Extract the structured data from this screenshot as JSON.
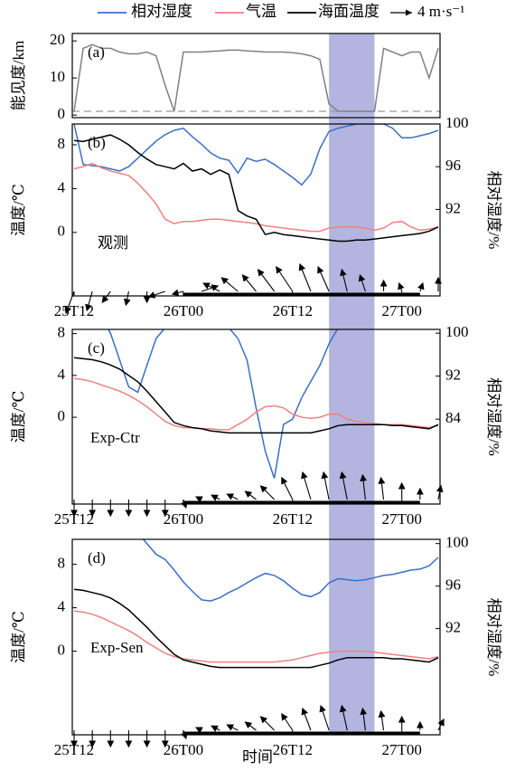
{
  "legend": {
    "items": [
      {
        "name": "相对湿度",
        "color": "#3a6fc4"
      },
      {
        "name": "气温",
        "color": "#f08080"
      },
      {
        "name": "海面温度",
        "color": "#000000"
      }
    ],
    "wind": {
      "value": 4,
      "label": "4 m·s⁻¹"
    }
  },
  "shade": {
    "range": [
      "26T16",
      "26T21"
    ],
    "color": "#9b9bd6"
  },
  "x_axis_label": "时间",
  "chart_data": [
    {
      "type": "line",
      "panel_label": "(a)",
      "ylabel": "能见度/km",
      "ylim": [
        -0.7,
        22
      ],
      "yticks": [
        0,
        10,
        20
      ],
      "threshold": 1,
      "x": [
        "25T12",
        "25T13",
        "25T14",
        "25T15",
        "25T16",
        "25T17",
        "25T18",
        "25T19",
        "25T20",
        "25T21",
        "25T22",
        "25T23",
        "26T00",
        "26T01",
        "26T02",
        "26T03",
        "26T04",
        "26T05",
        "26T06",
        "26T07",
        "26T08",
        "26T09",
        "26T10",
        "26T11",
        "26T12",
        "26T13",
        "26T14",
        "26T15",
        "26T16",
        "26T17",
        "26T18",
        "26T19",
        "26T20",
        "26T21",
        "26T22",
        "26T23",
        "27T00",
        "27T01",
        "27T02",
        "27T03",
        "27T04"
      ],
      "series": [
        {
          "color": "#808080",
          "values": [
            1,
            18,
            19,
            18,
            18,
            17,
            16.5,
            16.5,
            17,
            16,
            8,
            1,
            17,
            17,
            17,
            17.2,
            17.3,
            17.5,
            17.5,
            17.3,
            17.2,
            17,
            17,
            17,
            16.8,
            16.5,
            16,
            15,
            3,
            1,
            1,
            1,
            1,
            1,
            18,
            17,
            16,
            17,
            17,
            10,
            18
          ]
        }
      ]
    },
    {
      "type": "line",
      "panel_label": "(b)",
      "annotation": "观测",
      "ylabel": "温度/℃",
      "y2label": "相对湿度/%",
      "ylim": [
        -5.8,
        9.9
      ],
      "yticks": [
        0,
        4,
        8
      ],
      "y2lim": [
        83.9,
        100
      ],
      "y2ticks": [
        92,
        96,
        100
      ],
      "xticks": [
        "25T12",
        "26T00",
        "26T12",
        "27T00"
      ],
      "bar_period": [
        "26T00",
        "27T02"
      ],
      "x": [
        "25T12",
        "25T13",
        "25T14",
        "25T15",
        "25T16",
        "25T17",
        "25T18",
        "25T19",
        "25T20",
        "25T21",
        "25T22",
        "25T23",
        "26T00",
        "26T01",
        "26T02",
        "26T03",
        "26T04",
        "26T05",
        "26T06",
        "26T07",
        "26T08",
        "26T09",
        "26T10",
        "26T11",
        "26T12",
        "26T13",
        "26T14",
        "26T15",
        "26T16",
        "26T17",
        "26T18",
        "26T19",
        "26T20",
        "26T21",
        "26T22",
        "26T23",
        "27T00",
        "27T01",
        "27T02",
        "27T03",
        "27T04"
      ],
      "series": [
        {
          "color": "#3a6fc4",
          "axis": "y2",
          "values": [
            100,
            96.2,
            96.1,
            96,
            95.8,
            95.6,
            96,
            96.8,
            97.6,
            98.4,
            99,
            99.4,
            99.6,
            98.8,
            98.1,
            97.3,
            96.8,
            96.6,
            95.4,
            96.8,
            96.5,
            96.7,
            96.2,
            95.6,
            95,
            94.3,
            95.3,
            97.7,
            99.3,
            99.6,
            99.8,
            100,
            100,
            100,
            100,
            99.6,
            98.7,
            98.7,
            98.9,
            99.1,
            99.4
          ]
        },
        {
          "color": "#f08080",
          "values": [
            5.8,
            6,
            6.3,
            5.9,
            5.6,
            5.4,
            5.2,
            4.5,
            3.6,
            2.6,
            1.2,
            0.8,
            1,
            1,
            1.1,
            1.2,
            1.2,
            1.1,
            1,
            0.9,
            0.8,
            0.6,
            0.5,
            0.4,
            0.3,
            0.2,
            0.1,
            0.1,
            0.4,
            0.5,
            0.5,
            0.5,
            0.4,
            0.2,
            0.4,
            0.9,
            1,
            0.5,
            0.2,
            0.3,
            0.5
          ]
        },
        {
          "color": "#000000",
          "values": [
            8.4,
            8.3,
            8.5,
            8.7,
            8.9,
            8.5,
            8,
            7.3,
            6.7,
            6.2,
            6,
            5.8,
            6.3,
            5.6,
            5.8,
            5.3,
            5.7,
            5.3,
            2,
            1.5,
            1.2,
            -0.2,
            0,
            -0.2,
            -0.3,
            -0.4,
            -0.5,
            -0.6,
            -0.7,
            -0.8,
            -0.8,
            -0.7,
            -0.7,
            -0.6,
            -0.5,
            -0.4,
            -0.3,
            -0.2,
            -0.1,
            0.1,
            0.5
          ]
        }
      ],
      "wind": {
        "x": [
          "25T12",
          "25T14",
          "25T16",
          "25T18",
          "25T20",
          "25T22",
          "26T00",
          "26T02",
          "26T04",
          "26T06",
          "26T08",
          "26T10",
          "26T12",
          "26T14",
          "26T16",
          "26T18",
          "26T20",
          "26T22",
          "27T00",
          "27T02",
          "27T04"
        ],
        "u": [
          -1.5,
          -1,
          -1.5,
          -0.5,
          0,
          -3,
          -2,
          3,
          -3,
          -3,
          -2.5,
          -3,
          -3,
          -2,
          -2,
          -1,
          -1,
          0,
          -0.5,
          0.5,
          0
        ],
        "v": [
          -4,
          -3.5,
          -2,
          -2.5,
          -2,
          -1,
          -0.5,
          1,
          1.5,
          2.5,
          3,
          4,
          4.5,
          5,
          4.5,
          4,
          3,
          2,
          1.5,
          1.5,
          2.5
        ]
      }
    },
    {
      "type": "line",
      "panel_label": "(c)",
      "annotation": "Exp-Ctr",
      "ylabel": "温度/℃",
      "y2label": "相对湿度/%",
      "ylim": [
        -8.3,
        8.4
      ],
      "yticks": [
        0,
        4,
        8
      ],
      "y2lim": [
        68.2,
        100.7
      ],
      "y2ticks": [
        84,
        92,
        100
      ],
      "xticks": [
        "25T12",
        "26T00",
        "26T12",
        "27T00"
      ],
      "bar_period": [
        "26T00",
        "27T02"
      ],
      "x": [
        "25T12",
        "25T13",
        "25T14",
        "25T15",
        "25T16",
        "25T17",
        "25T18",
        "25T19",
        "25T20",
        "25T21",
        "25T22",
        "25T23",
        "26T00",
        "26T01",
        "26T02",
        "26T03",
        "26T04",
        "26T05",
        "26T06",
        "26T07",
        "26T08",
        "26T09",
        "26T10",
        "26T11",
        "26T12",
        "26T13",
        "26T14",
        "26T15",
        "26T16",
        "26T17",
        "26T18",
        "26T19",
        "26T20",
        "26T21",
        "26T22",
        "26T23",
        "27T00",
        "27T01",
        "27T02",
        "27T03",
        "27T04"
      ],
      "series": [
        {
          "color": "#3a6fc4",
          "axis": "y2",
          "values": [
            104,
            104,
            104,
            103,
            100,
            95,
            90,
            89,
            94,
            99,
            101,
            102,
            102,
            102,
            102,
            102,
            102,
            101,
            99,
            95,
            86,
            78,
            73,
            83,
            84,
            88,
            91,
            94,
            98,
            101,
            103,
            103,
            103,
            103,
            103,
            103,
            103,
            103,
            103,
            103,
            103
          ]
        },
        {
          "color": "#f08080",
          "values": [
            3.7,
            3.6,
            3.4,
            3.1,
            2.8,
            2.5,
            2.1,
            1.6,
            1,
            0.3,
            -0.4,
            -0.8,
            -1,
            -1,
            -1.1,
            -1.1,
            -1.2,
            -1.2,
            -0.7,
            -0.2,
            0.5,
            1,
            1.1,
            0.9,
            0.3,
            0,
            -0.1,
            0,
            0.3,
            0.3,
            -0.2,
            -0.4,
            -0.5,
            -0.6,
            -0.7,
            -0.7,
            -0.7,
            -0.8,
            -0.9,
            -1,
            -0.8
          ]
        },
        {
          "color": "#000000",
          "values": [
            5.7,
            5.6,
            5.5,
            5.3,
            5,
            4.6,
            4,
            3.4,
            2.5,
            1.5,
            0.5,
            -0.5,
            -0.8,
            -1,
            -1.1,
            -1.3,
            -1.4,
            -1.5,
            -1.5,
            -1.5,
            -1.5,
            -1.5,
            -1.5,
            -1.5,
            -1.5,
            -1.5,
            -1.5,
            -1.3,
            -1.1,
            -0.8,
            -0.7,
            -0.7,
            -0.7,
            -0.7,
            -0.7,
            -0.8,
            -0.8,
            -0.9,
            -1,
            -1.1,
            -0.7
          ]
        }
      ],
      "wind": {
        "x": [
          "25T12",
          "25T14",
          "25T16",
          "25T18",
          "25T20",
          "25T22",
          "26T00",
          "26T02",
          "26T04",
          "26T06",
          "26T08",
          "26T10",
          "26T12",
          "26T14",
          "26T16",
          "26T18",
          "26T20",
          "26T22",
          "27T00",
          "27T02",
          "27T04"
        ],
        "u": [
          0,
          0,
          0,
          0,
          0,
          0,
          0.5,
          -1,
          -1.5,
          -2,
          -2,
          -2.5,
          -2,
          -1.5,
          -1,
          -1,
          -0.5,
          -0.5,
          0,
          0,
          0.5
        ],
        "v": [
          -3,
          -3,
          -3,
          -3,
          -3,
          -3,
          -1.5,
          0.5,
          0.8,
          1,
          1.5,
          2.5,
          4,
          5,
          5,
          5,
          4.5,
          4,
          3,
          2,
          2.5
        ]
      }
    },
    {
      "type": "line",
      "panel_label": "(d)",
      "annotation": "Exp-Sen",
      "ylabel": "温度/℃",
      "y2label": "相对湿度/%",
      "ylim": [
        -7.7,
        10.3
      ],
      "yticks": [
        0,
        4,
        8
      ],
      "y2lim": [
        82,
        100.4
      ],
      "y2ticks": [
        92,
        96,
        100
      ],
      "xticks": [
        "25T12",
        "26T00",
        "26T12",
        "27T00"
      ],
      "bar_period": [
        "26T00",
        "27T02"
      ],
      "x": [
        "25T12",
        "25T13",
        "25T14",
        "25T15",
        "25T16",
        "25T17",
        "25T18",
        "25T19",
        "25T20",
        "25T21",
        "25T22",
        "25T23",
        "26T00",
        "26T01",
        "26T02",
        "26T03",
        "26T04",
        "26T05",
        "26T06",
        "26T07",
        "26T08",
        "26T09",
        "26T10",
        "26T11",
        "26T12",
        "26T13",
        "26T14",
        "26T15",
        "26T16",
        "26T17",
        "26T18",
        "26T19",
        "26T20",
        "26T21",
        "26T22",
        "26T23",
        "27T00",
        "27T01",
        "27T02",
        "27T03",
        "27T04"
      ],
      "series": [
        {
          "color": "#3a6fc4",
          "axis": "y2",
          "values": [
            101,
            101,
            101,
            101,
            101,
            101,
            101,
            101,
            100,
            99,
            98.5,
            97.5,
            96.4,
            95.5,
            94.7,
            94.6,
            94.9,
            95.4,
            95.8,
            96.3,
            96.8,
            97.2,
            97,
            96.5,
            95.8,
            95.2,
            95,
            95.4,
            96.3,
            96.7,
            96.6,
            96.5,
            96.6,
            96.8,
            97,
            97.1,
            97.3,
            97.5,
            97.6,
            97.9,
            98.7
          ]
        },
        {
          "color": "#f08080",
          "values": [
            3.7,
            3.6,
            3.4,
            3.1,
            2.7,
            2.3,
            1.9,
            1.4,
            0.8,
            0.3,
            -0.2,
            -0.5,
            -0.7,
            -0.8,
            -0.9,
            -1,
            -1,
            -1,
            -1,
            -1,
            -1,
            -1,
            -1,
            -0.9,
            -0.8,
            -0.6,
            -0.4,
            -0.2,
            -0.1,
            0,
            0,
            0,
            0,
            -0.1,
            -0.2,
            -0.3,
            -0.4,
            -0.5,
            -0.6,
            -0.7,
            -0.5
          ]
        },
        {
          "color": "#000000",
          "values": [
            5.7,
            5.6,
            5.4,
            5.2,
            4.9,
            4.4,
            3.8,
            3,
            2.2,
            1.3,
            0.5,
            -0.3,
            -0.8,
            -1,
            -1.2,
            -1.4,
            -1.5,
            -1.5,
            -1.5,
            -1.5,
            -1.5,
            -1.5,
            -1.5,
            -1.5,
            -1.5,
            -1.5,
            -1.5,
            -1.3,
            -1.1,
            -0.8,
            -0.6,
            -0.6,
            -0.6,
            -0.6,
            -0.6,
            -0.7,
            -0.7,
            -0.8,
            -0.9,
            -1,
            -0.6
          ]
        }
      ],
      "wind": {
        "x": [
          "25T12",
          "25T14",
          "25T16",
          "25T18",
          "25T20",
          "25T22",
          "26T00",
          "26T02",
          "26T04",
          "26T06",
          "26T08",
          "26T10",
          "26T12",
          "26T14",
          "26T16",
          "26T18",
          "26T20",
          "26T22",
          "27T00",
          "27T02",
          "27T04"
        ],
        "u": [
          0,
          0,
          0,
          0,
          0,
          0,
          0.5,
          -1,
          -1.5,
          -2,
          -2,
          -2.5,
          -2,
          -1.5,
          -1.5,
          -1,
          -0.5,
          -0.5,
          0,
          0,
          1
        ],
        "v": [
          -3,
          -3,
          -3,
          -3,
          -3,
          -3,
          -1.5,
          0.5,
          0.8,
          1,
          1.5,
          2.5,
          3,
          4,
          4.5,
          4.5,
          4,
          3.5,
          2.5,
          1.5,
          2
        ]
      }
    }
  ]
}
